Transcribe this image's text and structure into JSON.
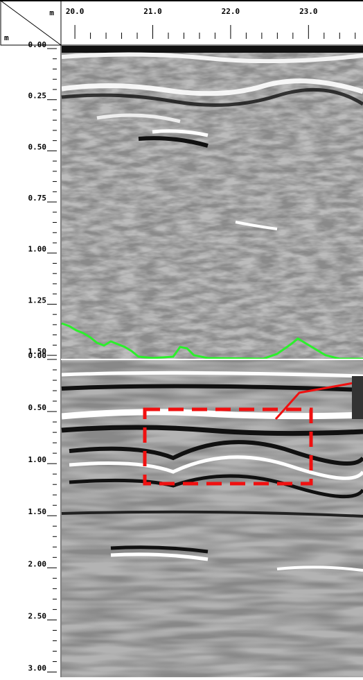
{
  "top_axis": {
    "unit": "m",
    "range": [
      19.83,
      23.7
    ],
    "ticks": [
      {
        "value": 20,
        "label": "20.0"
      },
      {
        "value": 21,
        "label": "21.0"
      },
      {
        "value": 22,
        "label": "22.0"
      },
      {
        "value": 23,
        "label": "23.0"
      }
    ]
  },
  "depth_unit": "m",
  "upper_panel": {
    "range": [
      -0.017,
      1.52
    ],
    "ticks": [
      {
        "value": 0,
        "label": "0.00"
      },
      0.25,
      {
        "value": 0.5,
        "label": "0.50"
      },
      0.75,
      {
        "value": 1,
        "label": "1.00"
      },
      1.25,
      {
        "value": 1.5,
        "label": "1.50"
      }
    ]
  },
  "lower_panel": {
    "range": [
      0,
      3.05
    ],
    "ticks": [
      {
        "value": 0,
        "label": "0.00"
      },
      {
        "value": 0.5,
        "label": "0.50"
      },
      {
        "value": 1,
        "label": "1.00"
      },
      {
        "value": 1.5,
        "label": "1.50"
      },
      {
        "value": 2,
        "label": "2.00"
      },
      {
        "value": 2.5,
        "label": "2.50"
      },
      {
        "value": 3,
        "label": "3.00"
      }
    ]
  }
}
